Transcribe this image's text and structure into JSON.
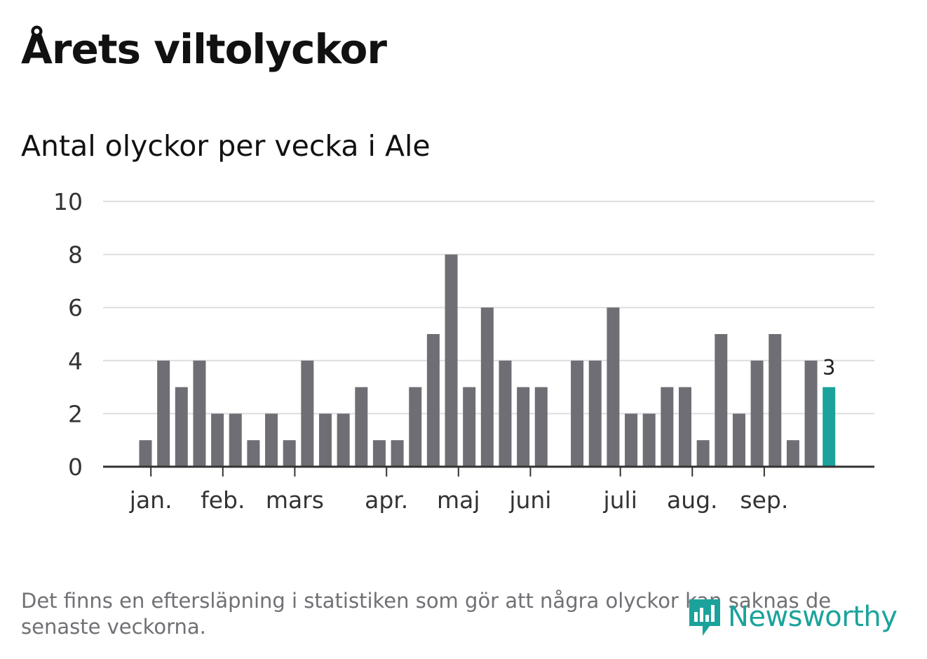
{
  "title": "Årets viltolyckor",
  "subtitle": "Antal olyckor per vecka i Ale",
  "footnote": "Det finns en eftersläpning i statistiken som gör att några olyckor kan saknas de senaste veckorna.",
  "brand": "Newsworthy",
  "colors": {
    "bar": "#6f6e74",
    "highlight": "#1ba39b",
    "grid": "#dddddd",
    "axis": "#333333"
  },
  "chart_data": {
    "type": "bar",
    "title": "Antal olyckor per vecka i Ale",
    "xlabel": "",
    "ylabel": "",
    "ylim": [
      0,
      10
    ],
    "yticks": [
      "0",
      "2",
      "4",
      "6",
      "8",
      "10"
    ],
    "grid": true,
    "x": [
      1,
      2,
      3,
      4,
      5,
      6,
      7,
      8,
      9,
      10,
      11,
      12,
      13,
      14,
      15,
      16,
      17,
      18,
      19,
      20,
      21,
      22,
      23,
      24,
      25,
      26,
      27,
      28,
      29,
      30,
      31,
      32,
      33,
      34,
      35,
      36,
      37,
      38,
      39
    ],
    "values": [
      1,
      4,
      3,
      4,
      2,
      2,
      1,
      2,
      1,
      4,
      2,
      2,
      3,
      1,
      1,
      3,
      5,
      8,
      3,
      6,
      4,
      3,
      3,
      0,
      4,
      4,
      6,
      2,
      2,
      3,
      3,
      1,
      5,
      2,
      4,
      5,
      1,
      4,
      3
    ],
    "month_ticks": [
      {
        "label": "jan.",
        "x": 1.3
      },
      {
        "label": "feb.",
        "x": 5.3
      },
      {
        "label": "mars",
        "x": 9.3
      },
      {
        "label": "apr.",
        "x": 14.4
      },
      {
        "label": "maj",
        "x": 18.4
      },
      {
        "label": "juni",
        "x": 22.4
      },
      {
        "label": "juli",
        "x": 27.4
      },
      {
        "label": "aug.",
        "x": 31.4
      },
      {
        "label": "sep.",
        "x": 35.4
      }
    ],
    "highlight_index": 38,
    "highlight_label": "3"
  }
}
